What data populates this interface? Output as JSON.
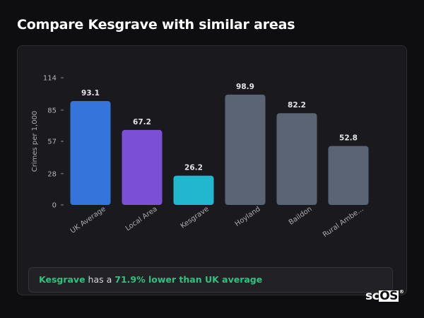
{
  "page": {
    "title": "Compare Kesgrave with similar areas"
  },
  "chart_data": {
    "type": "bar",
    "ylabel": "Crimes per 1,000",
    "xlabel": "",
    "ylim": [
      0,
      114
    ],
    "yticks": [
      0,
      28,
      57,
      85,
      114
    ],
    "grid": false,
    "categories": [
      "UK Average",
      "Local Area",
      "Kesgrave",
      "Hoyland",
      "Baildon",
      "Rural Ambe..."
    ],
    "values": [
      93.1,
      67.2,
      26.2,
      98.9,
      82.2,
      52.8
    ],
    "value_labels": [
      "93.1",
      "67.2",
      "26.2",
      "98.9",
      "82.2",
      "52.8"
    ],
    "colors": [
      "#3474db",
      "#7b4fd6",
      "#20b7cf",
      "#5a6474",
      "#5a6474",
      "#5a6474"
    ]
  },
  "insight": {
    "area": "Kesgrave",
    "text_mid": " has a ",
    "highlight": "71.9% lower than UK average"
  },
  "brand": {
    "prefix": "sc",
    "boxed": "OS",
    "mark": "®"
  }
}
